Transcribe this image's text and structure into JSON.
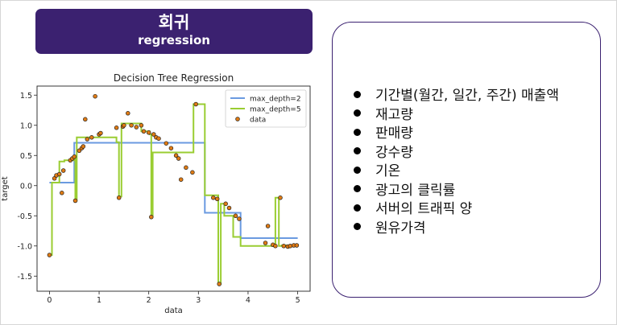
{
  "banner": {
    "title_ko": "회귀",
    "title_en": "regression"
  },
  "features": [
    "기간별(월간, 일간, 주간) 매출액",
    "재고량",
    "판매량",
    "강수량",
    "기온",
    "광고의 클릭률",
    "서버의 트래픽 양",
    "원유가격"
  ],
  "colors": {
    "banner": "#3b2170",
    "depth2": "#6a9ae0",
    "depth5": "#9acd32",
    "points": "#e07b14"
  },
  "chart_data": {
    "type": "line",
    "title": "Decision Tree Regression",
    "xlabel": "data",
    "ylabel": "target",
    "xlim": [
      -0.25,
      5.25
    ],
    "ylim": [
      -1.75,
      1.65
    ],
    "xticks": [
      0,
      1,
      2,
      3,
      4,
      5
    ],
    "yticks": [
      -1.5,
      -1.0,
      -0.5,
      0.0,
      0.5,
      1.0,
      1.5
    ],
    "legend_position": "top-right",
    "legend": [
      "max_depth=2",
      "max_depth=5",
      "data"
    ],
    "series": [
      {
        "name": "max_depth=2",
        "type": "step",
        "x": [
          0.0,
          0.5,
          0.5,
          3.13,
          3.13,
          3.85,
          3.85,
          5.0
        ],
        "y": [
          0.05,
          0.05,
          0.71,
          0.71,
          -0.45,
          -0.45,
          -0.87,
          -0.87
        ]
      },
      {
        "name": "max_depth=5",
        "type": "step",
        "x": [
          0.0,
          0.05,
          0.05,
          0.2,
          0.2,
          0.3,
          0.3,
          0.5,
          0.5,
          0.52,
          0.52,
          0.55,
          0.55,
          1.35,
          1.35,
          1.4,
          1.4,
          1.45,
          1.45,
          1.85,
          1.85,
          2.02,
          2.02,
          2.05,
          2.05,
          2.08,
          2.08,
          2.9,
          2.9,
          3.13,
          3.13,
          3.4,
          3.4,
          3.45,
          3.45,
          3.52,
          3.52,
          3.7,
          3.7,
          3.85,
          3.85,
          4.55,
          4.55,
          4.62,
          4.62,
          4.68,
          4.68,
          5.0
        ],
        "y": [
          -1.15,
          -1.15,
          0.05,
          0.05,
          0.4,
          0.4,
          0.42,
          0.42,
          0.5,
          0.5,
          -0.25,
          -0.25,
          0.8,
          0.8,
          0.72,
          0.72,
          -0.18,
          -0.18,
          1.03,
          1.03,
          0.9,
          0.9,
          0.85,
          0.85,
          -0.5,
          -0.5,
          0.55,
          0.55,
          1.35,
          1.35,
          -0.16,
          -0.16,
          -1.63,
          -1.63,
          -0.3,
          -0.3,
          -0.5,
          -0.5,
          -0.85,
          -0.85,
          -1.0,
          -1.0,
          -0.2,
          -0.2,
          -1.0,
          -1.0,
          -0.99,
          -0.99
        ]
      }
    ],
    "points": [
      [
        0.0,
        -1.15
      ],
      [
        0.1,
        0.12
      ],
      [
        0.14,
        0.17
      ],
      [
        0.2,
        0.19
      ],
      [
        0.25,
        -0.12
      ],
      [
        0.28,
        0.25
      ],
      [
        0.42,
        0.42
      ],
      [
        0.46,
        0.45
      ],
      [
        0.5,
        0.48
      ],
      [
        0.52,
        -0.25
      ],
      [
        0.6,
        0.58
      ],
      [
        0.65,
        0.62
      ],
      [
        0.68,
        0.65
      ],
      [
        0.72,
        1.1
      ],
      [
        0.76,
        0.77
      ],
      [
        0.85,
        0.8
      ],
      [
        0.92,
        1.48
      ],
      [
        1.0,
        0.85
      ],
      [
        1.03,
        0.87
      ],
      [
        1.35,
        0.96
      ],
      [
        1.4,
        -0.2
      ],
      [
        1.48,
        0.98
      ],
      [
        1.5,
        1.0
      ],
      [
        1.58,
        1.2
      ],
      [
        1.65,
        1.0
      ],
      [
        1.75,
        0.97
      ],
      [
        1.85,
        1.0
      ],
      [
        1.9,
        0.9
      ],
      [
        2.0,
        0.88
      ],
      [
        2.05,
        -0.52
      ],
      [
        2.1,
        0.85
      ],
      [
        2.15,
        0.8
      ],
      [
        2.2,
        0.78
      ],
      [
        2.35,
        0.7
      ],
      [
        2.45,
        0.62
      ],
      [
        2.55,
        0.5
      ],
      [
        2.6,
        0.45
      ],
      [
        2.65,
        0.1
      ],
      [
        2.75,
        0.3
      ],
      [
        2.88,
        0.22
      ],
      [
        2.95,
        1.35
      ],
      [
        3.3,
        -0.2
      ],
      [
        3.38,
        -0.22
      ],
      [
        3.42,
        -1.63
      ],
      [
        3.55,
        -0.3
      ],
      [
        3.62,
        -0.37
      ],
      [
        3.75,
        -0.5
      ],
      [
        3.82,
        -0.55
      ],
      [
        4.35,
        -0.95
      ],
      [
        4.4,
        -0.67
      ],
      [
        4.5,
        -0.98
      ],
      [
        4.55,
        -1.0
      ],
      [
        4.65,
        -0.2
      ],
      [
        4.72,
        -1.0
      ],
      [
        4.8,
        -1.01
      ],
      [
        4.85,
        -1.0
      ],
      [
        4.92,
        -0.99
      ],
      [
        4.98,
        -0.99
      ]
    ]
  }
}
